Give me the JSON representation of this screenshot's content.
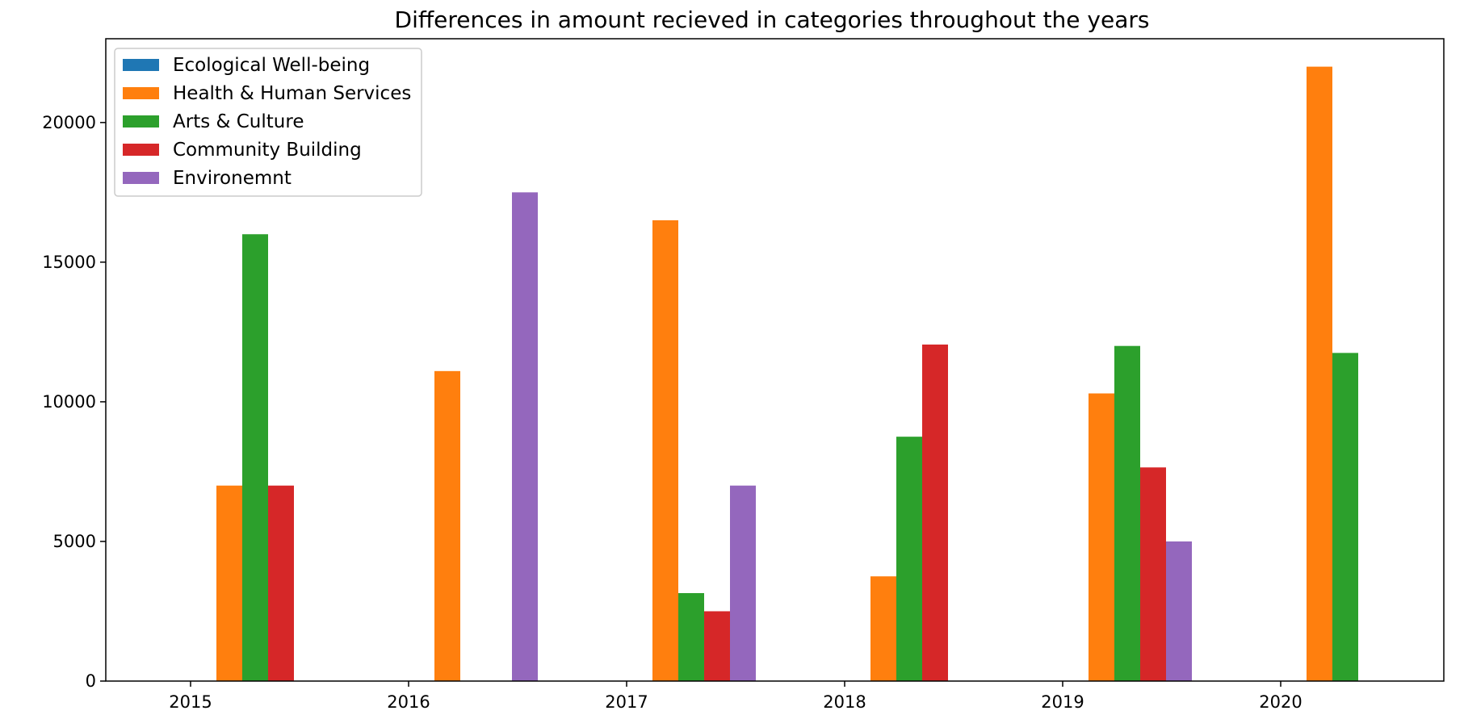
{
  "chart_data": {
    "type": "bar",
    "title": "Differences in amount recieved in categories throughout the years",
    "xlabel": "",
    "ylabel": "",
    "categories": [
      "2015",
      "2016",
      "2017",
      "2018",
      "2019",
      "2020"
    ],
    "ylim": [
      0,
      23000
    ],
    "yticks": [
      0,
      5000,
      10000,
      15000,
      20000
    ],
    "grid": false,
    "legend_position": "top-left",
    "series": [
      {
        "name": "Ecological Well-being",
        "color": "#1f77b4",
        "values": [
          0,
          0,
          0,
          0,
          0,
          0
        ]
      },
      {
        "name": "Health & Human Services",
        "color": "#ff7f0e",
        "values": [
          7000,
          11100,
          16500,
          3750,
          10300,
          22000
        ]
      },
      {
        "name": "Arts & Culture",
        "color": "#2ca02c",
        "values": [
          16000,
          0,
          3150,
          8750,
          12000,
          11750
        ]
      },
      {
        "name": "Community Building",
        "color": "#d62728",
        "values": [
          7000,
          0,
          2500,
          12050,
          7650,
          0
        ]
      },
      {
        "name": "Environemnt",
        "color": "#9467bd",
        "values": [
          0,
          17500,
          7000,
          0,
          5000,
          0
        ]
      }
    ]
  }
}
